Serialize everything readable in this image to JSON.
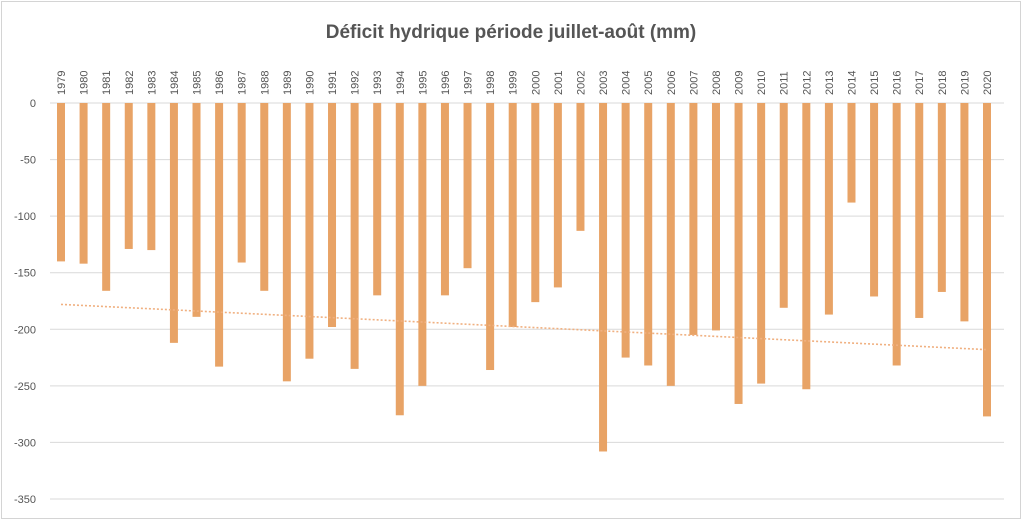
{
  "chart_data": {
    "type": "bar",
    "title": "Déficit hydrique période juillet-août (mm)",
    "xlabel": "",
    "ylabel": "",
    "categories": [
      "1979",
      "1980",
      "1981",
      "1982",
      "1983",
      "1984",
      "1985",
      "1986",
      "1987",
      "1988",
      "1989",
      "1990",
      "1991",
      "1992",
      "1993",
      "1994",
      "1995",
      "1996",
      "1997",
      "1998",
      "1999",
      "2000",
      "2001",
      "2002",
      "2003",
      "2004",
      "2005",
      "2006",
      "2007",
      "2008",
      "2009",
      "2010",
      "2011",
      "2012",
      "2013",
      "2014",
      "2015",
      "2016",
      "2017",
      "2018",
      "2019",
      "2020"
    ],
    "values": [
      -140,
      -142,
      -166,
      -129,
      -130,
      -212,
      -189,
      -233,
      -141,
      -166,
      -246,
      -226,
      -198,
      -235,
      -170,
      -276,
      -250,
      -170,
      -146,
      -236,
      -198,
      -176,
      -163,
      -113,
      -308,
      -225,
      -232,
      -250,
      -205,
      -201,
      -266,
      -248,
      -181,
      -253,
      -187,
      -88,
      -171,
      -232,
      -190,
      -167,
      -193,
      -277
    ],
    "ylim": [
      -350,
      0
    ],
    "yticks": [
      0,
      -50,
      -100,
      -150,
      -200,
      -250,
      -300,
      -350
    ],
    "trendline": {
      "type": "linear",
      "start": -178,
      "end": -218,
      "color": "#f0b080",
      "style": "dotted"
    },
    "bar_color": "#e8a366",
    "grid": true,
    "grid_color": "#d9d9d9",
    "legend": "none"
  }
}
